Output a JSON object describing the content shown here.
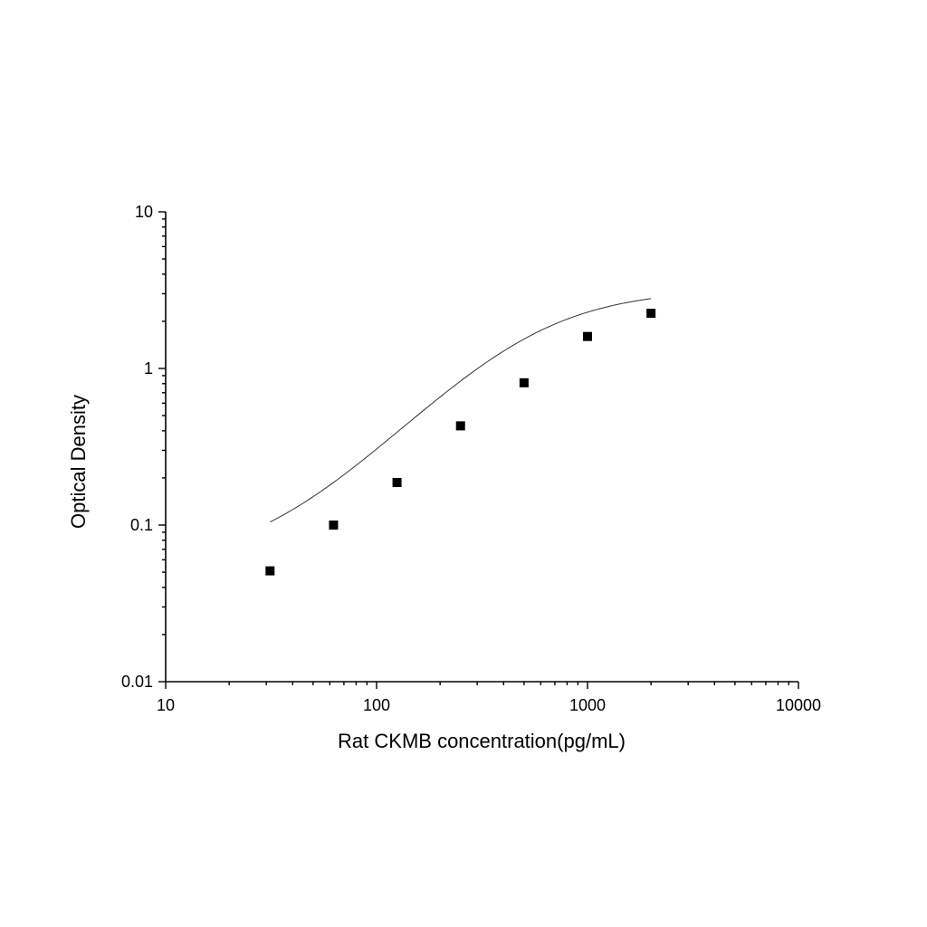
{
  "chart_data": {
    "type": "scatter",
    "xlabel": "Rat CKMB concentration(pg/mL)",
    "ylabel": "Optical Density",
    "xscale": "log",
    "yscale": "log",
    "xlim": [
      10,
      10000
    ],
    "ylim": [
      0.01,
      10
    ],
    "x_tick_labels": [
      "10",
      "100",
      "1000",
      "10000"
    ],
    "y_tick_labels": [
      "0.01",
      "0.1",
      "1",
      "10"
    ],
    "grid": false,
    "series": [
      {
        "marker": "square",
        "x": [
          31.25,
          62.5,
          125,
          250,
          500,
          1000,
          2000
        ],
        "y": [
          0.051,
          0.1,
          0.187,
          0.43,
          0.81,
          1.6,
          2.25
        ]
      }
    ],
    "fit": {
      "type": "4PL",
      "a": 0.055,
      "d": 3.2,
      "c": 540,
      "b": 1.45,
      "x_range": [
        31.25,
        2000
      ]
    },
    "colors": {
      "points": "#000000",
      "curve": "#333333",
      "axes": "#000000"
    }
  }
}
